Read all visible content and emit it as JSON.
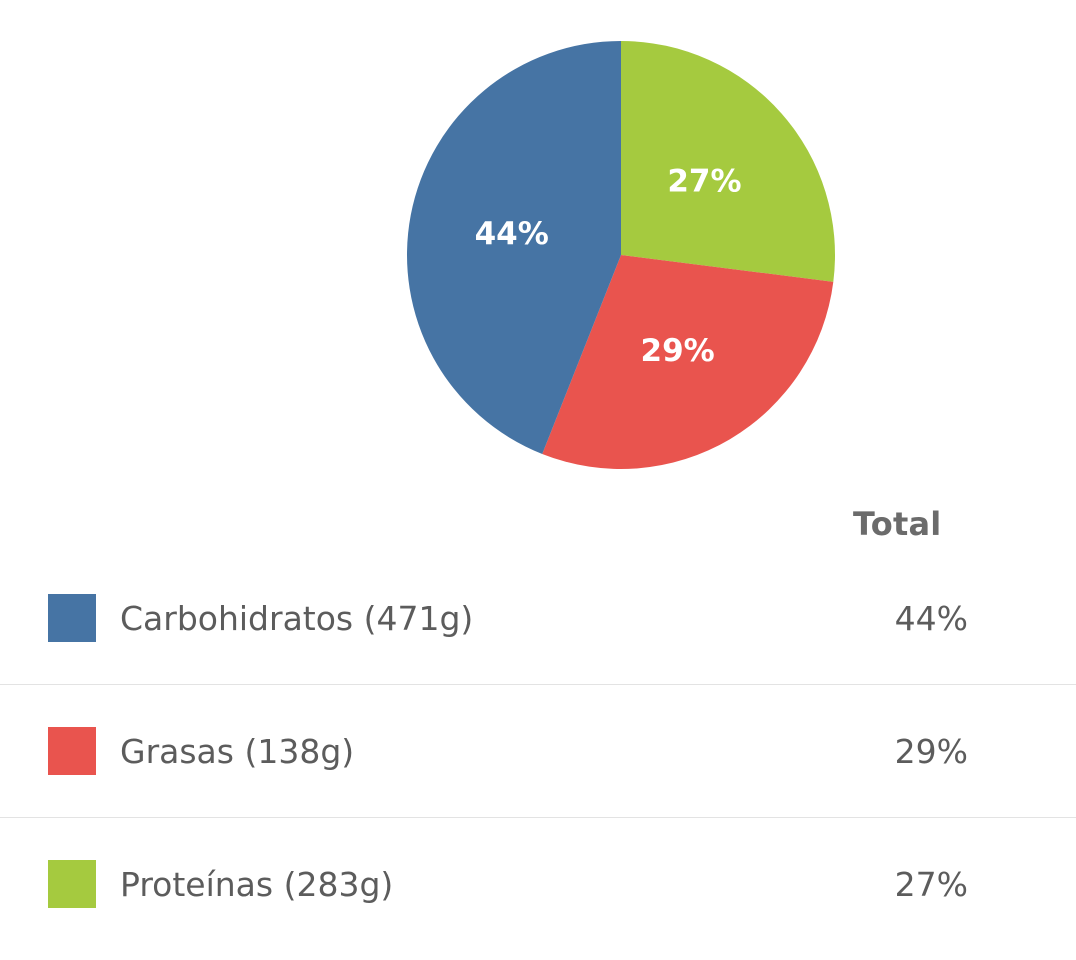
{
  "chart_data": {
    "type": "pie",
    "slices": [
      {
        "label": "Carbohidratos (471g)",
        "value": 44,
        "value_label": "44%",
        "color": "#4674a4"
      },
      {
        "label": "Grasas (138g)",
        "value": 29,
        "value_label": "29%",
        "color": "#e9544e"
      },
      {
        "label": "Proteínas (283g)",
        "value": 27,
        "value_label": "27%",
        "color": "#a5ca3f"
      }
    ]
  },
  "table": {
    "header": "Total",
    "rows": [
      {
        "label": "Carbohidratos (471g)",
        "value": "44%",
        "color": "#4674a4"
      },
      {
        "label": "Grasas (138g)",
        "value": "29%",
        "color": "#e9544e"
      },
      {
        "label": "Proteínas (283g)",
        "value": "27%",
        "color": "#a5ca3f"
      }
    ]
  }
}
